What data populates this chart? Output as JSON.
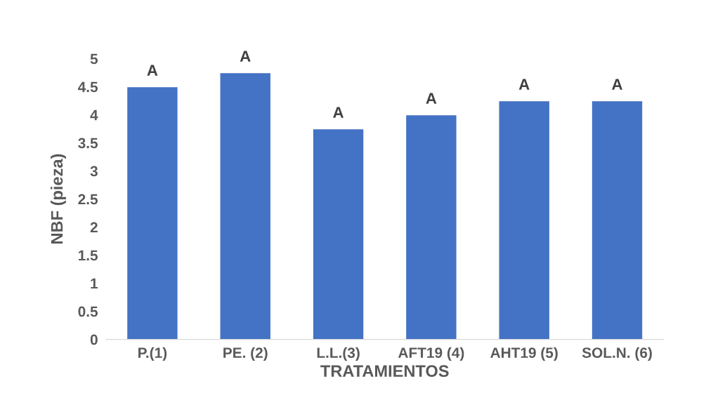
{
  "chart_data": {
    "type": "bar",
    "categories": [
      "P.(1)",
      "PE. (2)",
      "L.L.(3)",
      "AFT19 (4)",
      "AHT19 (5)",
      "SOL.N. (6)"
    ],
    "values": [
      4.5,
      4.75,
      3.75,
      4.0,
      4.25,
      4.25
    ],
    "color": "#4472c4",
    "xlabel": "TRATAMIENTOS",
    "ylabel": "NBF (pieza)",
    "ylim": [
      0,
      5
    ],
    "yticks": [
      0,
      0.5,
      1,
      1.5,
      2,
      2.5,
      3,
      3.5,
      4,
      4.5,
      5
    ],
    "grid": false,
    "annotations": [
      {
        "text": "A",
        "x": "P.(1)",
        "y": 4.5
      },
      {
        "text": "A",
        "x": "PE. (2)",
        "y": 4.75
      },
      {
        "text": "A",
        "x": "L.L.(3)",
        "y": 3.75
      },
      {
        "text": "A",
        "x": "AFT19 (4)",
        "y": 4.0
      },
      {
        "text": "A",
        "x": "AHT19 (5)",
        "y": 4.25
      },
      {
        "text": "A",
        "x": "SOL.N. (6)",
        "y": 4.25
      }
    ]
  }
}
